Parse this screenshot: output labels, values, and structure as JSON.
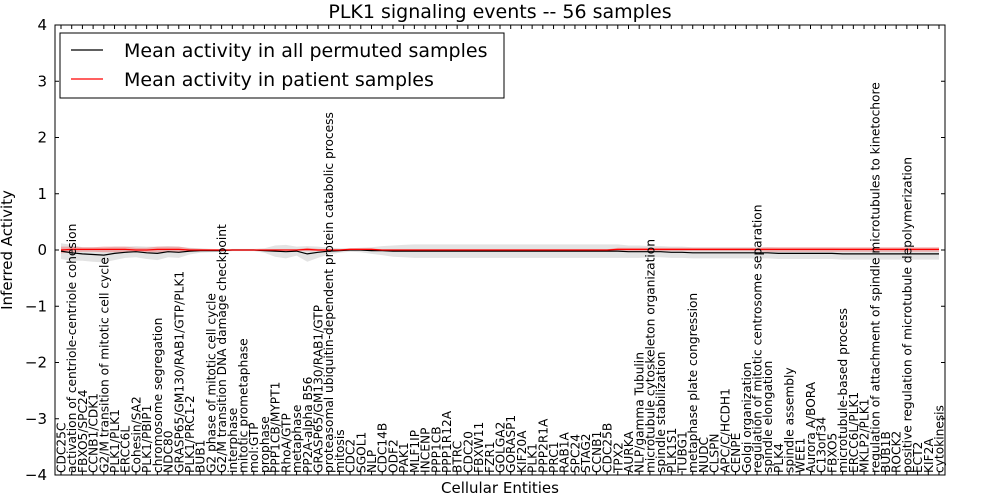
{
  "chart_data": {
    "type": "line",
    "title": "PLK1 signaling events -- 56 samples",
    "xlabel": "Cellular Entities",
    "ylabel": "Inferred Activity",
    "ylim": [
      -4,
      4
    ],
    "yticks": [
      "−4",
      "−3",
      "−2",
      "−1",
      "0",
      "1",
      "2",
      "3",
      "4"
    ],
    "grid": false,
    "legend_position": "top-left",
    "colors": {
      "permuted": "#000000",
      "patient": "#ff0000",
      "permuted_band": "#d9d9d9",
      "patient_band": "#f08080"
    },
    "entities": [
      "CDC25C",
      "activation of centriole-centriole cohesion",
      "FBXO5/SPC24",
      "CCNB1/CDK1",
      "G2/M transition of mitotic cell cycle",
      "PLK1/PLK1",
      "ERCC6L",
      "Cohesin/SA2",
      "PLK1/PBIP1",
      "chromosome segregation",
      "NDC80",
      "GRASP65/GM130/RAB1/GTP/PLK1",
      "PLK1/PRC1-2",
      "BUB1",
      "G2 phase of mitotic cell cycle",
      "G2/M transition DNA damage checkpoint",
      "interphase",
      "mitotic prometaphase",
      "mol:GTP",
      "prophase",
      "PPP1CB/MYPT1",
      "RhoA/GTP",
      "metaphase",
      "PP2A-alpha B56",
      "GRASP65/GM130/RAB1/GTP",
      "proteasomal ubiquitin-dependent protein catabolic process",
      "mitosis",
      "CDC2",
      "SGOL1",
      "NLP",
      "CDC14B",
      "ODF2",
      "PAK1",
      "MLF1IP",
      "INCENP",
      "PPP1CB",
      "PPP1R12A",
      "BTRC",
      "CDC20",
      "FBXW11",
      "FZR1",
      "GOLGA2",
      "GORASP1",
      "KIF20A",
      "PLK1",
      "PPP2R1A",
      "PRC1",
      "RAB1A",
      "SPC24",
      "STAG2",
      "CCNB1",
      "CDC25B",
      "TPX2",
      "AURKA",
      "NLP/gamma Tubulin",
      "microtubule cytoskeleton organization",
      "spindle stabilization",
      "PLK1S1",
      "TUBG1",
      "metaphase plate congression",
      "NUDC",
      "CLSPN",
      "APC/C/HCDH1",
      "CENPE",
      "Golgi organization",
      "regulation of mitotic centrosome separation",
      "spindle elongation",
      "PLK4",
      "spindle assembly",
      "WEE1",
      "Aurora A/BORA",
      "C13orf34",
      "FBXO5",
      "microtubule-based process",
      "ERCC6L/PLK1",
      "MKLP2/PLK1",
      "regulation of attachment of spindle microtubules to kinetochore",
      "BUB1B",
      "ROCK2",
      "positive regulation of microtubule depolymerization",
      "ECT2",
      "KIF2A",
      "cytokinesis"
    ],
    "series": [
      {
        "name": "Mean activity in all permuted samples",
        "color": "#000000",
        "values": [
          -0.02,
          -0.05,
          -0.07,
          -0.08,
          -0.09,
          -0.06,
          -0.04,
          -0.03,
          -0.05,
          -0.06,
          -0.03,
          -0.04,
          -0.02,
          -0.01,
          -0.01,
          -0.01,
          0.0,
          0.0,
          0.0,
          -0.01,
          -0.02,
          -0.03,
          -0.02,
          -0.07,
          -0.04,
          -0.02,
          -0.01,
          0.0,
          0.0,
          -0.01,
          -0.01,
          -0.02,
          -0.02,
          -0.02,
          -0.02,
          -0.02,
          -0.02,
          -0.02,
          -0.02,
          -0.02,
          -0.02,
          -0.02,
          -0.02,
          -0.02,
          -0.02,
          -0.02,
          -0.02,
          -0.02,
          -0.02,
          -0.02,
          -0.02,
          -0.02,
          -0.02,
          -0.03,
          -0.03,
          -0.03,
          -0.03,
          -0.04,
          -0.04,
          -0.05,
          -0.05,
          -0.05,
          -0.05,
          -0.05,
          -0.05,
          -0.05,
          -0.05,
          -0.06,
          -0.06,
          -0.06,
          -0.06,
          -0.06,
          -0.06,
          -0.07,
          -0.07,
          -0.07,
          -0.07,
          -0.07,
          -0.07,
          -0.07,
          -0.07,
          -0.07,
          -0.07
        ],
        "band": [
          0.14,
          0.14,
          0.12,
          0.13,
          0.13,
          0.12,
          0.1,
          0.1,
          0.11,
          0.12,
          0.1,
          0.1,
          0.06,
          0.04,
          0.03,
          0.02,
          0.02,
          0.02,
          0.02,
          0.04,
          0.1,
          0.12,
          0.08,
          0.14,
          0.1,
          0.06,
          0.04,
          0.03,
          0.04,
          0.06,
          0.08,
          0.1,
          0.11,
          0.12,
          0.12,
          0.12,
          0.12,
          0.12,
          0.12,
          0.12,
          0.12,
          0.12,
          0.12,
          0.12,
          0.12,
          0.12,
          0.12,
          0.12,
          0.12,
          0.12,
          0.12,
          0.12,
          0.12,
          0.11,
          0.11,
          0.1,
          0.1,
          0.1,
          0.1,
          0.1,
          0.1,
          0.1,
          0.1,
          0.1,
          0.1,
          0.1,
          0.1,
          0.1,
          0.1,
          0.1,
          0.1,
          0.1,
          0.1,
          0.1,
          0.1,
          0.1,
          0.1,
          0.1,
          0.1,
          0.1,
          0.1,
          0.1,
          0.1
        ]
      },
      {
        "name": "Mean activity in patient samples",
        "color": "#ff0000",
        "values": [
          0.0,
          0.01,
          0.01,
          0.01,
          0.01,
          0.01,
          0.01,
          0.0,
          0.0,
          0.01,
          0.01,
          0.01,
          0.0,
          0.0,
          0.0,
          0.0,
          0.0,
          0.0,
          0.0,
          0.0,
          0.0,
          0.0,
          0.0,
          0.01,
          0.0,
          0.0,
          0.0,
          0.01,
          0.01,
          0.01,
          0.0,
          0.0,
          0.0,
          0.0,
          0.0,
          0.0,
          0.0,
          0.0,
          0.0,
          0.0,
          0.0,
          0.0,
          0.0,
          0.0,
          0.0,
          0.0,
          0.0,
          0.0,
          0.0,
          0.0,
          0.0,
          0.0,
          0.01,
          0.01,
          0.01,
          0.01,
          0.01,
          0.01,
          0.01,
          0.01,
          0.01,
          0.01,
          0.01,
          0.01,
          0.01,
          0.01,
          0.01,
          0.01,
          0.01,
          0.01,
          0.01,
          0.01,
          0.01,
          0.01,
          0.01,
          0.01,
          0.01,
          0.01,
          0.01,
          0.01,
          0.01,
          0.01,
          0.01
        ],
        "band": [
          0.06,
          0.05,
          0.04,
          0.04,
          0.05,
          0.05,
          0.05,
          0.04,
          0.04,
          0.05,
          0.05,
          0.05,
          0.03,
          0.02,
          0.01,
          0.01,
          0.01,
          0.01,
          0.01,
          0.01,
          0.01,
          0.01,
          0.01,
          0.03,
          0.02,
          0.01,
          0.01,
          0.02,
          0.02,
          0.02,
          0.01,
          0.01,
          0.01,
          0.01,
          0.01,
          0.01,
          0.01,
          0.01,
          0.01,
          0.01,
          0.01,
          0.01,
          0.01,
          0.01,
          0.01,
          0.01,
          0.01,
          0.01,
          0.01,
          0.01,
          0.01,
          0.01,
          0.03,
          0.03,
          0.03,
          0.03,
          0.03,
          0.03,
          0.03,
          0.03,
          0.03,
          0.03,
          0.03,
          0.03,
          0.03,
          0.03,
          0.04,
          0.04,
          0.04,
          0.04,
          0.04,
          0.04,
          0.04,
          0.04,
          0.04,
          0.04,
          0.04,
          0.04,
          0.04,
          0.04,
          0.04,
          0.04,
          0.04
        ]
      }
    ]
  }
}
